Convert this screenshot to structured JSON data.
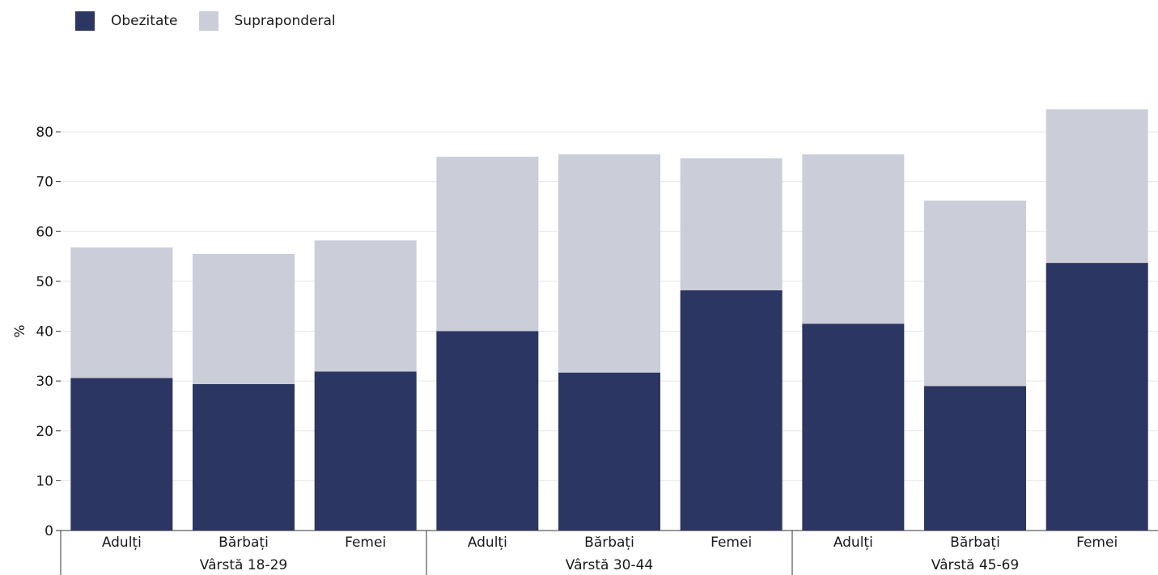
{
  "legend": {
    "items": [
      {
        "label": "Obezitate",
        "color": "#2b3663"
      },
      {
        "label": "Supraponderal",
        "color": "#cbcdd9"
      }
    ]
  },
  "chart_data": {
    "type": "bar",
    "stacked": true,
    "ylabel": "%",
    "ylim": [
      0,
      85
    ],
    "yticks": [
      0,
      10,
      20,
      30,
      40,
      50,
      60,
      70,
      80
    ],
    "grid": true,
    "legend_position": "top-left",
    "categories": [
      "Adulți",
      "Bărbați",
      "Femei",
      "Adulți",
      "Bărbați",
      "Femei",
      "Adulți",
      "Bărbați",
      "Femei"
    ],
    "groups": [
      {
        "label": "Vârstă 18-29",
        "count": 3
      },
      {
        "label": "Vârstă 30-44",
        "count": 3
      },
      {
        "label": "Vârstă 45-69",
        "count": 3
      }
    ],
    "series": [
      {
        "name": "Obezitate",
        "color": "#2b3663",
        "values": [
          30.6,
          29.4,
          31.9,
          40.0,
          31.7,
          48.2,
          41.5,
          29.0,
          53.7
        ]
      },
      {
        "name": "Supraponderal",
        "color": "#cbcdd9",
        "values": [
          26.2,
          26.1,
          26.3,
          35.0,
          43.8,
          26.5,
          34.0,
          37.2,
          30.8
        ]
      }
    ]
  }
}
